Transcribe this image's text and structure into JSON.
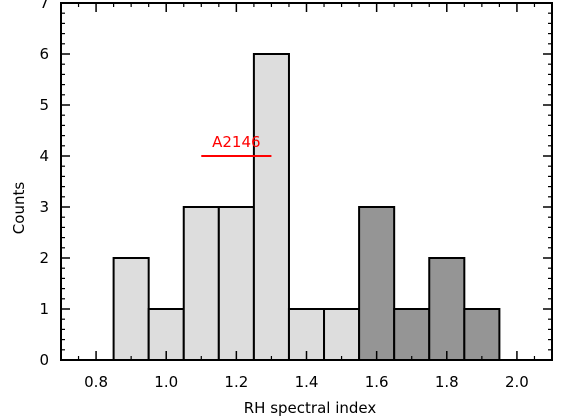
{
  "chart_data": {
    "type": "bar",
    "title": "",
    "xlabel": "RH spectral index",
    "ylabel": "Counts",
    "xlim": [
      0.7,
      2.1
    ],
    "ylim": [
      0,
      7
    ],
    "xticks": [
      "0.8",
      "1.0",
      "1.2",
      "1.4",
      "1.6",
      "1.8",
      "2.0"
    ],
    "xtick_values": [
      0.8,
      1.0,
      1.2,
      1.4,
      1.6,
      1.8,
      2.0
    ],
    "yticks": [
      "0",
      "1",
      "2",
      "3",
      "4",
      "5",
      "6",
      "7"
    ],
    "bin_width": 0.1,
    "series": [
      {
        "color": "#dddddd",
        "bins": [
          {
            "center": 0.9,
            "count": 2
          },
          {
            "center": 1.0,
            "count": 1
          },
          {
            "center": 1.1,
            "count": 3
          },
          {
            "center": 1.2,
            "count": 3
          },
          {
            "center": 1.3,
            "count": 6
          },
          {
            "center": 1.4,
            "count": 1
          },
          {
            "center": 1.5,
            "count": 1
          }
        ]
      },
      {
        "color": "#959595",
        "bins": [
          {
            "center": 1.6,
            "count": 3
          },
          {
            "center": 1.7,
            "count": 1
          },
          {
            "center": 1.8,
            "count": 2
          },
          {
            "center": 1.9,
            "count": 1
          }
        ]
      }
    ],
    "annotations": [
      {
        "text": "A2146",
        "color": "#ff0000",
        "x_range": [
          1.1,
          1.3
        ],
        "y": 4
      }
    ],
    "grid": false
  }
}
